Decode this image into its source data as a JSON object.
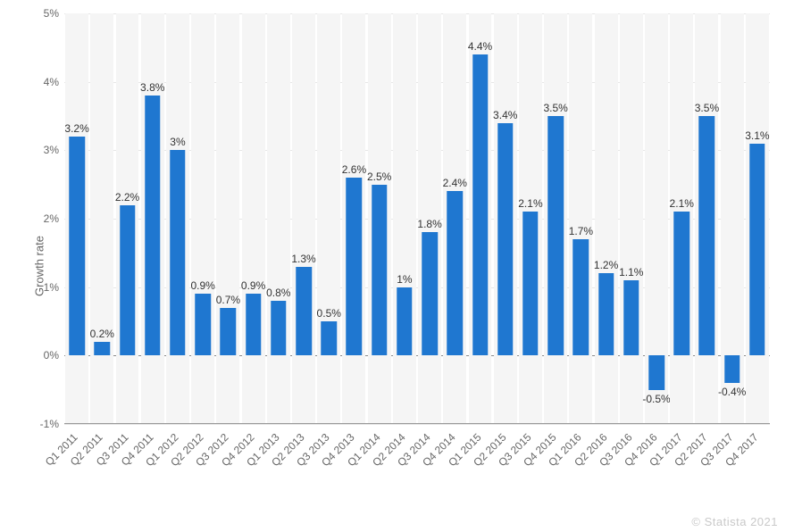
{
  "chart": {
    "type": "bar",
    "ylabel": "Growth rate",
    "label_fontsize": 13,
    "label_color": "#666666",
    "ylim": [
      -1,
      5
    ],
    "yticks": [
      -1,
      0,
      1,
      2,
      3,
      4,
      5
    ],
    "ytick_labels": [
      "-1%",
      "0%",
      "1%",
      "2%",
      "3%",
      "4%",
      "5%"
    ],
    "ytick_fontsize": 12,
    "ytick_color": "#666666",
    "grid_color": "#e6e6e6",
    "zero_line_color": "#888888",
    "background_color": "#ffffff",
    "bar_slot_bg": "#f5f5f5",
    "bar_color": "#1f77d0",
    "bar_width_ratio": 0.62,
    "value_label_color": "#333333",
    "value_label_fontsize": 12,
    "xtick_fontsize": 12,
    "xtick_color": "#666666",
    "xtick_rotation_deg": 45,
    "categories": [
      "Q1 2011",
      "Q2 2011",
      "Q3 2011",
      "Q4 2011",
      "Q1 2012",
      "Q2 2012",
      "Q3 2012",
      "Q4 2012",
      "Q1 2013",
      "Q2 2013",
      "Q3 2013",
      "Q4 2013",
      "Q1 2014",
      "Q2 2014",
      "Q3 2014",
      "Q4 2014",
      "Q1 2015",
      "Q2 2015",
      "Q3 2015",
      "Q4 2015",
      "Q1 2016",
      "Q2 2016",
      "Q3 2016",
      "Q4 2016",
      "Q1 2017",
      "Q2 2017",
      "Q3 2017",
      "Q4 2017"
    ],
    "values": [
      3.2,
      0.2,
      2.2,
      3.8,
      3.0,
      0.9,
      0.7,
      0.9,
      0.8,
      1.3,
      0.5,
      2.6,
      2.5,
      1.0,
      1.8,
      2.4,
      4.4,
      3.4,
      2.1,
      3.5,
      1.7,
      1.2,
      1.1,
      -0.5,
      2.1,
      3.5,
      -0.4,
      3.1
    ],
    "value_labels": [
      "3.2%",
      "0.2%",
      "2.2%",
      "3.8%",
      "3%",
      "0.9%",
      "0.7%",
      "0.9%",
      "0.8%",
      "1.3%",
      "0.5%",
      "2.6%",
      "2.5%",
      "1%",
      "1.8%",
      "2.4%",
      "4.4%",
      "3.4%",
      "2.1%",
      "3.5%",
      "1.7%",
      "1.2%",
      "1.1%",
      "-0.5%",
      "2.1%",
      "3.5%",
      "-0.4%",
      "3.1%"
    ],
    "watermark": "© Statista 2021"
  }
}
